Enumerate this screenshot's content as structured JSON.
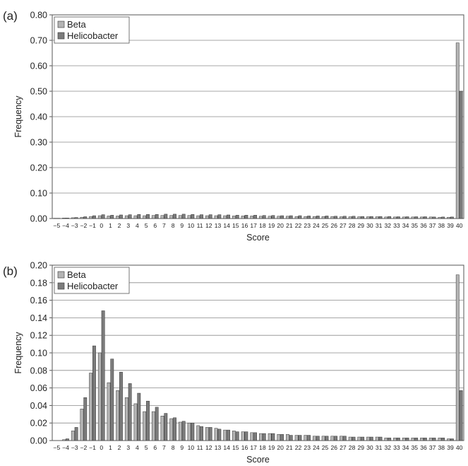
{
  "chart_data": [
    {
      "panel_label": "(a)",
      "type": "bar",
      "xlabel": "Score",
      "ylabel": "Frequency",
      "ylim": [
        0,
        0.8
      ],
      "yticks": [
        "0.00",
        "0.10",
        "0.20",
        "0.30",
        "0.40",
        "0.50",
        "0.60",
        "0.70",
        "0.80"
      ],
      "grid": true,
      "legend_position": "top-left",
      "categories": [
        "−5",
        "−4",
        "−3",
        "−2",
        "−1",
        "0",
        "1",
        "2",
        "3",
        "4",
        "5",
        "6",
        "7",
        "8",
        "9",
        "10",
        "11",
        "12",
        "13",
        "14",
        "15",
        "16",
        "17",
        "18",
        "19",
        "20",
        "21",
        "22",
        "23",
        "24",
        "25",
        "26",
        "27",
        "28",
        "29",
        "30",
        "31",
        "32",
        "33",
        "34",
        "35",
        "36",
        "37",
        "38",
        "39",
        "40"
      ],
      "series": [
        {
          "name": "Beta",
          "color": "#b4b4b4",
          "values": [
            0.001,
            0.002,
            0.003,
            0.005,
            0.008,
            0.011,
            0.01,
            0.01,
            0.011,
            0.011,
            0.011,
            0.012,
            0.012,
            0.012,
            0.012,
            0.012,
            0.011,
            0.011,
            0.011,
            0.011,
            0.01,
            0.01,
            0.01,
            0.009,
            0.009,
            0.009,
            0.009,
            0.008,
            0.008,
            0.008,
            0.008,
            0.008,
            0.007,
            0.007,
            0.007,
            0.007,
            0.007,
            0.006,
            0.006,
            0.006,
            0.006,
            0.006,
            0.006,
            0.005,
            0.005,
            0.69
          ]
        },
        {
          "name": "Helicobacter",
          "color": "#7c7c7c",
          "values": [
            0.001,
            0.002,
            0.004,
            0.007,
            0.011,
            0.015,
            0.013,
            0.014,
            0.015,
            0.016,
            0.016,
            0.016,
            0.017,
            0.017,
            0.017,
            0.016,
            0.015,
            0.015,
            0.015,
            0.014,
            0.013,
            0.013,
            0.013,
            0.012,
            0.012,
            0.011,
            0.011,
            0.011,
            0.01,
            0.01,
            0.01,
            0.009,
            0.009,
            0.009,
            0.008,
            0.008,
            0.008,
            0.008,
            0.007,
            0.007,
            0.007,
            0.007,
            0.006,
            0.006,
            0.006,
            0.5
          ]
        }
      ]
    },
    {
      "panel_label": "(b)",
      "type": "bar",
      "xlabel": "Score",
      "ylabel": "Frequency",
      "ylim": [
        0,
        0.2
      ],
      "yticks": [
        "0.00",
        "0.02",
        "0.04",
        "0.06",
        "0.08",
        "0.10",
        "0.12",
        "0.14",
        "0.16",
        "0.18",
        "0.20"
      ],
      "grid": true,
      "legend_position": "top-left",
      "categories": [
        "−5",
        "−4",
        "−3",
        "−2",
        "−1",
        "0",
        "1",
        "2",
        "3",
        "4",
        "5",
        "6",
        "7",
        "8",
        "9",
        "10",
        "11",
        "12",
        "13",
        "14",
        "15",
        "16",
        "17",
        "18",
        "19",
        "20",
        "21",
        "22",
        "23",
        "24",
        "25",
        "26",
        "27",
        "28",
        "29",
        "30",
        "31",
        "32",
        "33",
        "34",
        "35",
        "36",
        "37",
        "38",
        "39",
        "40"
      ],
      "series": [
        {
          "name": "Beta",
          "color": "#b4b4b4",
          "values": [
            0.0,
            0.001,
            0.011,
            0.036,
            0.077,
            0.1,
            0.066,
            0.057,
            0.049,
            0.042,
            0.033,
            0.033,
            0.028,
            0.025,
            0.021,
            0.02,
            0.017,
            0.015,
            0.014,
            0.012,
            0.011,
            0.01,
            0.009,
            0.008,
            0.008,
            0.007,
            0.007,
            0.006,
            0.006,
            0.005,
            0.005,
            0.005,
            0.005,
            0.004,
            0.004,
            0.004,
            0.004,
            0.003,
            0.003,
            0.003,
            0.003,
            0.003,
            0.003,
            0.003,
            0.002,
            0.189
          ]
        },
        {
          "name": "Helicobacter",
          "color": "#7c7c7c",
          "values": [
            0.0,
            0.002,
            0.015,
            0.049,
            0.108,
            0.148,
            0.093,
            0.078,
            0.065,
            0.054,
            0.045,
            0.038,
            0.031,
            0.026,
            0.022,
            0.02,
            0.016,
            0.015,
            0.013,
            0.012,
            0.01,
            0.01,
            0.009,
            0.008,
            0.008,
            0.007,
            0.006,
            0.006,
            0.006,
            0.005,
            0.005,
            0.005,
            0.005,
            0.004,
            0.004,
            0.004,
            0.004,
            0.003,
            0.003,
            0.003,
            0.003,
            0.003,
            0.003,
            0.003,
            0.002,
            0.057
          ]
        }
      ]
    }
  ]
}
